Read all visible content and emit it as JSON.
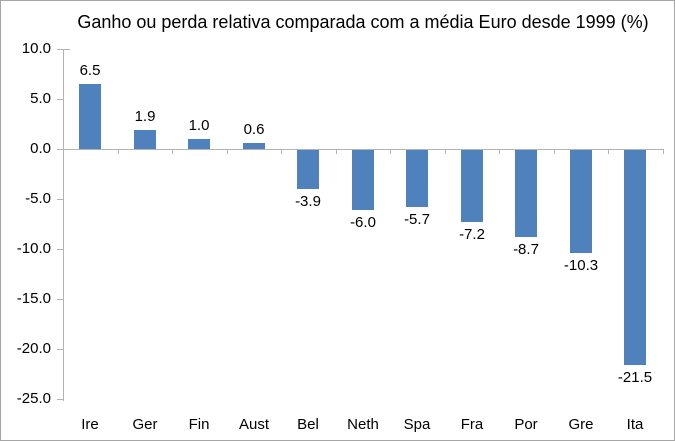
{
  "chart_data": {
    "type": "bar",
    "title": "Ganho ou perda relativa comparada com a média Euro desde 1999 (%)",
    "xlabel": "",
    "ylabel": "",
    "categories": [
      "Ire",
      "Ger",
      "Fin",
      "Aust",
      "Bel",
      "Neth",
      "Spa",
      "Fra",
      "Por",
      "Gre",
      "Ita"
    ],
    "values": [
      6.5,
      1.9,
      1.0,
      0.6,
      -3.9,
      -6.0,
      -5.7,
      -7.2,
      -8.7,
      -10.3,
      -21.5
    ],
    "value_labels": [
      "6.5",
      "1.9",
      "1.0",
      "0.6",
      "-3.9",
      "-6.0",
      "-5.7",
      "-7.2",
      "-8.7",
      "-10.3",
      "-21.5"
    ],
    "ylim": [
      -25.0,
      10.0
    ],
    "yticks": [
      10,
      5,
      0,
      -5,
      -10,
      -15,
      -20,
      -25
    ],
    "ytick_labels": [
      "10.0",
      "5.0",
      "0.0",
      "-5.0",
      "-10.0",
      "-15.0",
      "-20.0",
      "-25.0"
    ],
    "grid": false,
    "legend": false,
    "label_position": "outside-end",
    "bar_color": "#4f81bd",
    "axis_color": "#b3b3b3",
    "text_color": "#000000"
  }
}
